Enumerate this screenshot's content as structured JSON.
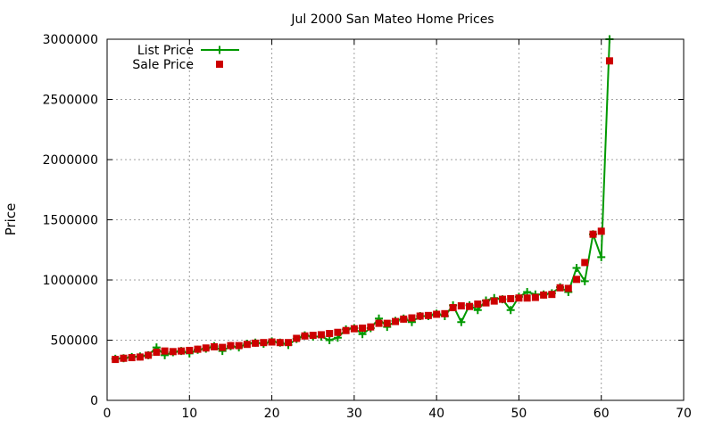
{
  "chart_data": {
    "type": "line",
    "title": "Jul 2000 San Mateo Home Prices",
    "xlabel": "",
    "ylabel": "Price",
    "xlim": [
      0,
      70
    ],
    "ylim": [
      0,
      3000000
    ],
    "xticks": [
      0,
      10,
      20,
      30,
      40,
      50,
      60,
      70
    ],
    "yticks": [
      0,
      500000,
      1000000,
      1500000,
      2000000,
      2500000,
      3000000
    ],
    "grid": true,
    "legend_position": "top-left",
    "series": [
      {
        "name": "List Price",
        "style": "line+plus",
        "color": "#009900",
        "x": [
          1,
          2,
          3,
          4,
          5,
          6,
          7,
          8,
          9,
          10,
          11,
          12,
          13,
          14,
          15,
          16,
          17,
          18,
          19,
          20,
          21,
          22,
          23,
          24,
          25,
          26,
          27,
          28,
          29,
          30,
          31,
          32,
          33,
          34,
          35,
          36,
          37,
          38,
          39,
          40,
          41,
          42,
          43,
          44,
          45,
          46,
          47,
          48,
          49,
          50,
          51,
          52,
          53,
          54,
          55,
          56,
          57,
          58,
          59,
          60,
          61
        ],
        "y": [
          345000,
          350000,
          360000,
          365000,
          375000,
          440000,
          375000,
          400000,
          410000,
          390000,
          420000,
          430000,
          450000,
          410000,
          450000,
          440000,
          470000,
          480000,
          470000,
          490000,
          480000,
          460000,
          510000,
          540000,
          530000,
          530000,
          500000,
          520000,
          590000,
          600000,
          550000,
          600000,
          680000,
          610000,
          660000,
          680000,
          650000,
          700000,
          700000,
          720000,
          700000,
          790000,
          650000,
          790000,
          750000,
          830000,
          850000,
          840000,
          750000,
          860000,
          900000,
          880000,
          880000,
          890000,
          940000,
          900000,
          1100000,
          990000,
          1380000,
          1190000,
          3000000
        ]
      },
      {
        "name": "Sale Price",
        "style": "square",
        "color": "#cc0000",
        "x": [
          1,
          2,
          3,
          4,
          5,
          6,
          7,
          8,
          9,
          10,
          11,
          12,
          13,
          14,
          15,
          16,
          17,
          18,
          19,
          20,
          21,
          22,
          23,
          24,
          25,
          26,
          27,
          28,
          29,
          30,
          31,
          32,
          33,
          34,
          35,
          36,
          37,
          38,
          39,
          40,
          41,
          42,
          43,
          44,
          45,
          46,
          47,
          48,
          49,
          50,
          51,
          52,
          53,
          54,
          55,
          56,
          57,
          58,
          59,
          60,
          61
        ],
        "y": [
          340000,
          350000,
          355000,
          360000,
          375000,
          400000,
          410000,
          405000,
          410000,
          415000,
          425000,
          435000,
          445000,
          440000,
          455000,
          455000,
          465000,
          475000,
          480000,
          485000,
          480000,
          480000,
          515000,
          535000,
          540000,
          545000,
          555000,
          565000,
          580000,
          595000,
          600000,
          610000,
          640000,
          640000,
          655000,
          675000,
          685000,
          700000,
          705000,
          715000,
          720000,
          770000,
          785000,
          780000,
          800000,
          810000,
          825000,
          840000,
          845000,
          850000,
          850000,
          855000,
          875000,
          880000,
          935000,
          930000,
          1005000,
          1145000,
          1380000,
          1405000,
          2820000
        ]
      }
    ]
  }
}
